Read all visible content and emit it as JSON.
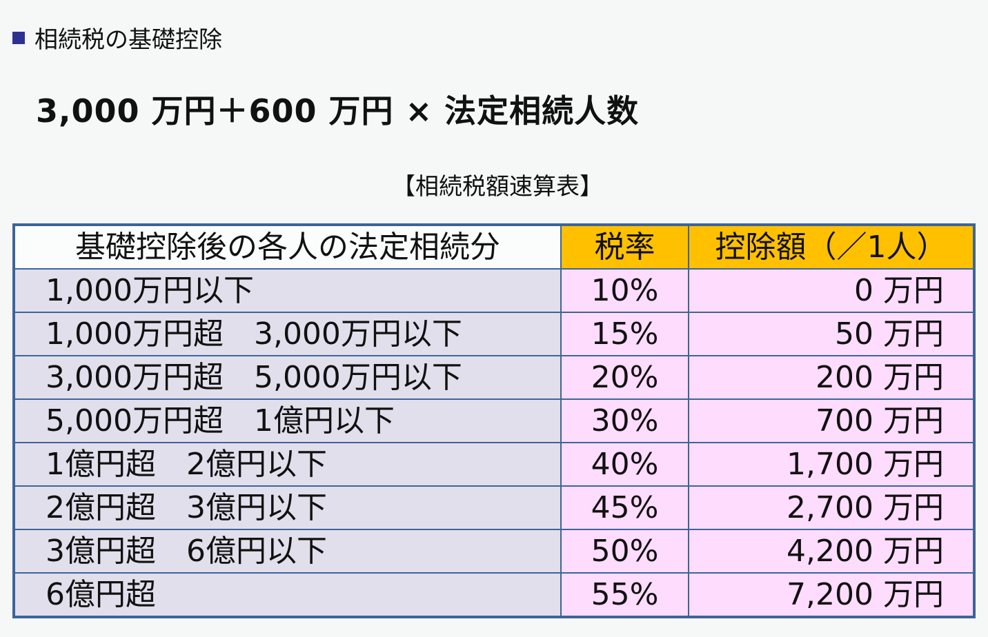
{
  "heading": "相続税の基礎控除",
  "formula": "3,000 万円＋600 万円 × 法定相続人数",
  "caption": "【相続税額速算表】",
  "colors": {
    "marker": "#2e3192",
    "header": "#ffc000",
    "left_cells": "#e2dfec",
    "right_cells": "#fedcfd",
    "border": "#3d6499"
  },
  "table": {
    "headers": [
      "基礎控除後の各人の法定相続分",
      "税率",
      "控除額（／1人）"
    ],
    "rows": [
      {
        "range": "1,000万円以下",
        "rate": "10%",
        "deduction": "0 万円"
      },
      {
        "range": "1,000万円超　3,000万円以下",
        "rate": "15%",
        "deduction": "50 万円"
      },
      {
        "range": "3,000万円超　5,000万円以下",
        "rate": "20%",
        "deduction": "200 万円"
      },
      {
        "range": "5,000万円超　1億円以下",
        "rate": "30%",
        "deduction": "700 万円"
      },
      {
        "range": "1億円超　2億円以下",
        "rate": "40%",
        "deduction": "1,700 万円"
      },
      {
        "range": "2億円超　3億円以下",
        "rate": "45%",
        "deduction": "2,700 万円"
      },
      {
        "range": "3億円超　6億円以下",
        "rate": "50%",
        "deduction": "4,200 万円"
      },
      {
        "range": "6億円超",
        "rate": "55%",
        "deduction": "7,200 万円"
      }
    ]
  }
}
